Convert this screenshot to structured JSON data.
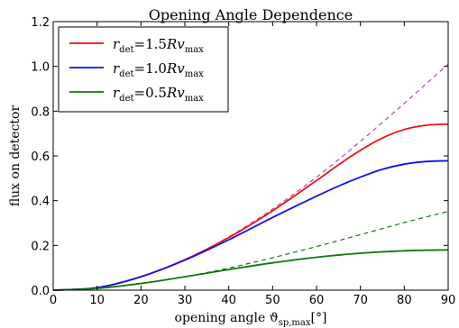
{
  "chart_data": {
    "type": "line",
    "title": "Opening Angle Dependence",
    "xlabel": "opening angle ϑ",
    "xlabel_sub": "sp,max",
    "xlabel_unit": "[°]",
    "ylabel": "flux on detector",
    "xlim": [
      0,
      90
    ],
    "ylim": [
      0,
      1.2
    ],
    "xticks": [
      0,
      10,
      20,
      30,
      40,
      50,
      60,
      70,
      80,
      90
    ],
    "yticks": [
      "0.0",
      "0.2",
      "0.4",
      "0.6",
      "0.8",
      "1.0",
      "1.2"
    ],
    "legend_position": "top-left",
    "series": [
      {
        "name": "r_det=1.5Rv_max",
        "label_main": "r",
        "label_sub": "det",
        "label_eq": "=1.5",
        "label_rv": "Rv",
        "label_rv_sub": "max",
        "color": "#ee1111",
        "style": "solid",
        "x": [
          0,
          10,
          20,
          30,
          40,
          50,
          60,
          65,
          70,
          75,
          80,
          85,
          90
        ],
        "y": [
          0,
          0.011,
          0.06,
          0.136,
          0.235,
          0.355,
          0.49,
          0.56,
          0.625,
          0.68,
          0.718,
          0.737,
          0.742
        ]
      },
      {
        "name": "r_det=1.0Rv_max",
        "label_main": "r",
        "label_sub": "det",
        "label_eq": "=1.0",
        "label_rv": "Rv",
        "label_rv_sub": "max",
        "color": "#1111ee",
        "style": "solid",
        "x": [
          0,
          10,
          20,
          30,
          40,
          50,
          60,
          65,
          70,
          75,
          80,
          85,
          90
        ],
        "y": [
          0,
          0.011,
          0.06,
          0.134,
          0.225,
          0.325,
          0.42,
          0.465,
          0.505,
          0.54,
          0.563,
          0.575,
          0.578
        ]
      },
      {
        "name": "r_det=0.5Rv_max",
        "label_main": "r",
        "label_sub": "det",
        "label_eq": "=0.5",
        "label_rv": "Rv",
        "label_rv_sub": "max",
        "color": "#117711",
        "style": "solid",
        "x": [
          0,
          10,
          20,
          30,
          40,
          50,
          60,
          70,
          80,
          90
        ],
        "y": [
          0,
          0.008,
          0.03,
          0.06,
          0.092,
          0.122,
          0.147,
          0.165,
          0.176,
          0.18
        ]
      },
      {
        "color": "#bb44aa",
        "style": "dashed",
        "x": [
          0,
          10,
          20,
          30,
          40,
          50,
          60,
          70,
          80,
          90
        ],
        "y": [
          0,
          0.011,
          0.06,
          0.137,
          0.238,
          0.363,
          0.505,
          0.665,
          0.835,
          1.01
        ]
      },
      {
        "color": "#117711",
        "style": "dashed",
        "x": [
          0,
          10,
          20,
          30,
          40,
          50,
          60,
          70,
          80,
          90
        ],
        "y": [
          0,
          0.008,
          0.03,
          0.06,
          0.099,
          0.145,
          0.195,
          0.248,
          0.302,
          0.352
        ]
      }
    ]
  }
}
